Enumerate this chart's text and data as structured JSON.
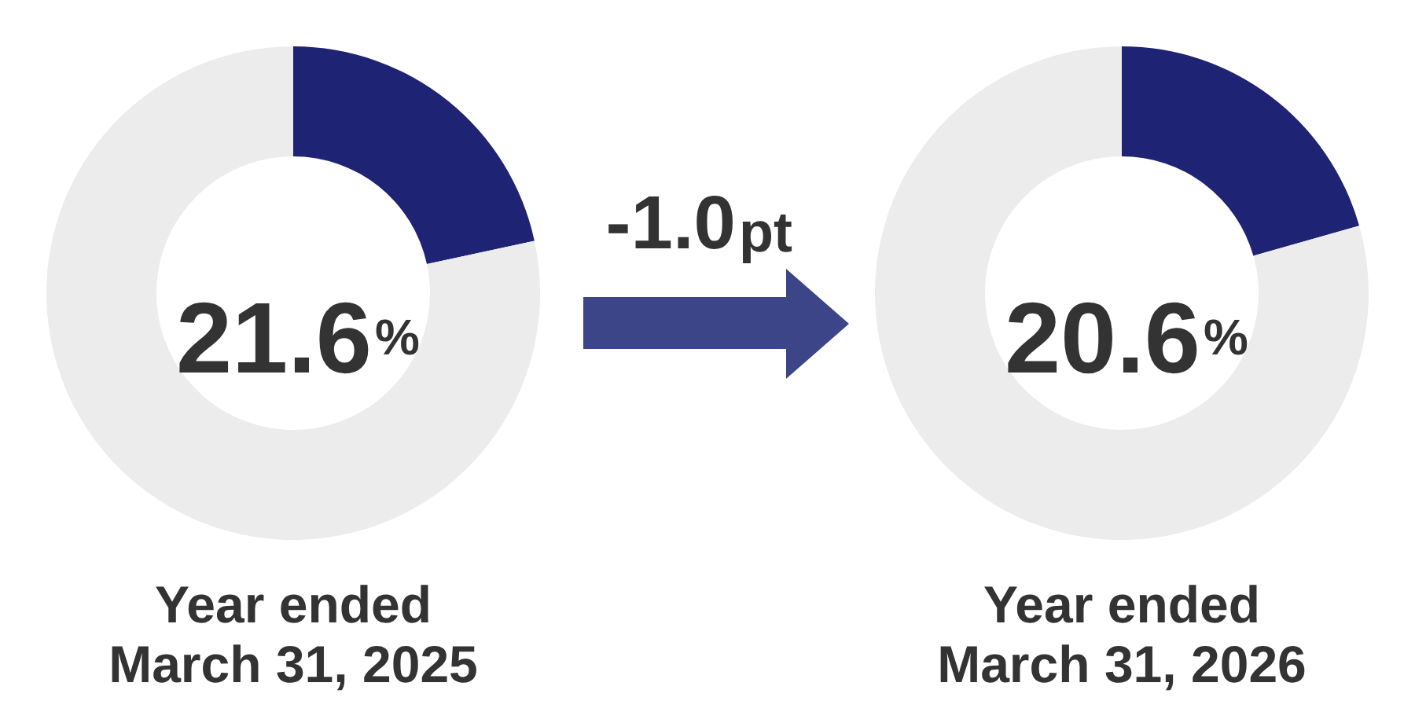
{
  "chart_data": [
    {
      "type": "donut",
      "title": "Year ended March 31, 2025",
      "categories": [
        null,
        null
      ],
      "values": [
        21.6,
        78.4
      ],
      "colors": [
        "#1e2374",
        "#ececec"
      ],
      "annotations": [
        "21.6%"
      ]
    },
    {
      "type": "other",
      "annotations": [
        "-1.0pt"
      ]
    },
    {
      "type": "donut",
      "title": "Year ended March 31, 2026",
      "categories": [
        null,
        null
      ],
      "values": [
        20.6,
        79.4
      ],
      "colors": [
        "#1e2374",
        "#ececec"
      ],
      "annotations": [
        "20.6%"
      ]
    }
  ]
}
